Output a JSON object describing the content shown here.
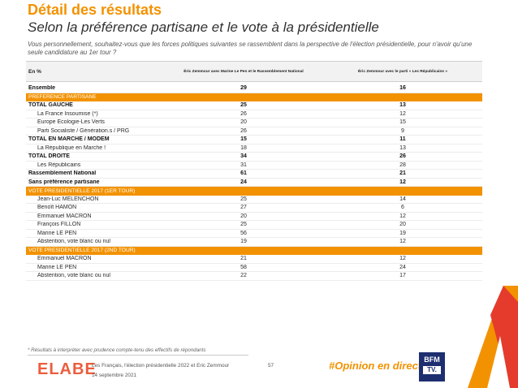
{
  "header": {
    "section_title": "Détail des résultats",
    "title": "Selon la préférence partisane et le vote à la présidentielle",
    "question": "Vous personnellement, souhaitez-vous que les forces politiques suivantes se rassemblent dans la perspective de l'élection présidentielle, pour n'avoir qu'une seule candidature au 1er tour ?"
  },
  "table": {
    "columns": [
      "En %",
      "Éric Zemmour avec Marine Le Pen et le Rassemblement National",
      "Éric Zemmour avec le parti « Les Républicains »"
    ],
    "rows": [
      {
        "label": "Ensemble",
        "v1": "29",
        "v2": "16",
        "type": "total"
      },
      {
        "label": "PREFERENCE PARTISANE",
        "v1": "",
        "v2": "",
        "type": "section"
      },
      {
        "label": "TOTAL GAUCHE",
        "v1": "25",
        "v2": "13",
        "type": "total"
      },
      {
        "label": "La France Insoumise (*)",
        "v1": "26",
        "v2": "12",
        "type": "indent"
      },
      {
        "label": "Europe Ecologie-Les Verts",
        "v1": "20",
        "v2": "15",
        "type": "indent"
      },
      {
        "label": "Parti Socialiste / Génération.s / PRG",
        "v1": "26",
        "v2": "9",
        "type": "indent"
      },
      {
        "label": "TOTAL EN MARCHE / MODEM",
        "v1": "15",
        "v2": "11",
        "type": "total"
      },
      {
        "label": "La République en Marche !",
        "v1": "18",
        "v2": "13",
        "type": "indent"
      },
      {
        "label": "TOTAL DROITE",
        "v1": "34",
        "v2": "26",
        "type": "total"
      },
      {
        "label": "Les Républicains",
        "v1": "31",
        "v2": "28",
        "type": "indent"
      },
      {
        "label": "Rassemblement National",
        "v1": "61",
        "v2": "21",
        "type": "total"
      },
      {
        "label": "Sans préférence partisane",
        "v1": "24",
        "v2": "12",
        "type": "total"
      },
      {
        "label": "VOTE PRESIDENTIELLE 2017 (1ER TOUR)",
        "v1": "",
        "v2": "",
        "type": "section"
      },
      {
        "label": "Jean-Luc MELENCHON",
        "v1": "25",
        "v2": "14",
        "type": "indent"
      },
      {
        "label": "Benoît HAMON",
        "v1": "27",
        "v2": "6",
        "type": "indent"
      },
      {
        "label": "Emmanuel MACRON",
        "v1": "20",
        "v2": "12",
        "type": "indent"
      },
      {
        "label": "François FILLON",
        "v1": "25",
        "v2": "20",
        "type": "indent"
      },
      {
        "label": "Marine LE PEN",
        "v1": "56",
        "v2": "19",
        "type": "indent"
      },
      {
        "label": "Abstention, vote blanc ou nul",
        "v1": "19",
        "v2": "12",
        "type": "indent"
      },
      {
        "label": "VOTE PRESIDENTIELLE 2017 (2ND TOUR)",
        "v1": "",
        "v2": "",
        "type": "section"
      },
      {
        "label": "Emmanuel MACRON",
        "v1": "21",
        "v2": "12",
        "type": "indent"
      },
      {
        "label": "Marine LE PEN",
        "v1": "58",
        "v2": "24",
        "type": "indent"
      },
      {
        "label": "Abstention, vote blanc ou nul",
        "v1": "22",
        "v2": "17",
        "type": "indent"
      }
    ]
  },
  "footer": {
    "note": "* Résultats à interpréter avec prudence compte-tenu des effectifs de répondants",
    "brand": "ELABE",
    "study": "Les Français, l'élection présidentielle 2022 et Eric Zemmour",
    "date": "14 septembre 2021",
    "page": "57",
    "hashtag": "#Opinion en direct",
    "partner_line1": "BFM",
    "partner_line2": "TV."
  },
  "colors": {
    "accent": "#f39200",
    "brand": "#eb5e3e",
    "partner": "#1d2f6f"
  }
}
